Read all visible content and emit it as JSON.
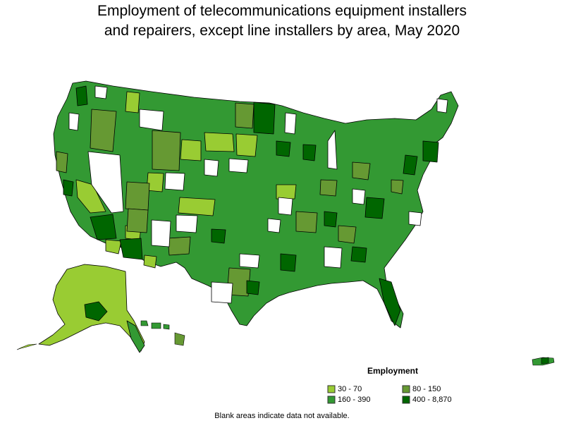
{
  "title": {
    "line1": "Employment of telecommunications equipment installers",
    "line2": "and repairers, except line installers by area, May 2020"
  },
  "legend": {
    "title": "Employment",
    "bins": [
      {
        "label": "30 - 70",
        "color": "#99cc33"
      },
      {
        "label": "80 - 150",
        "color": "#669933"
      },
      {
        "label": "160 - 390",
        "color": "#339933"
      },
      {
        "label": "400 - 8,870",
        "color": "#006600"
      }
    ]
  },
  "footnote": "Blank areas indicate data not available.",
  "colors": {
    "no_data": "#ffffff",
    "border": "#000000"
  }
}
